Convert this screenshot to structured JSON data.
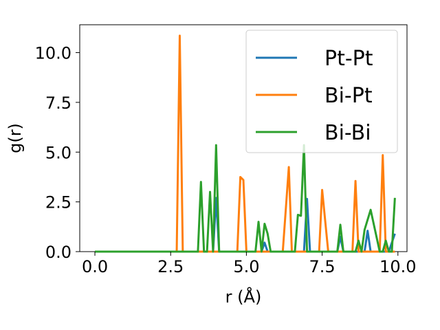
{
  "chart_data": {
    "type": "line",
    "xlabel": "r (Å)",
    "ylabel": "g(r)",
    "xlim": [
      -0.5,
      10.3
    ],
    "ylim": [
      0,
      11.4
    ],
    "xticks": [
      0.0,
      2.5,
      5.0,
      7.5,
      10.0
    ],
    "xtick_labels": [
      "0.0",
      "2.5",
      "5.0",
      "7.5",
      "10.0"
    ],
    "yticks": [
      0.0,
      2.5,
      5.0,
      7.5,
      10.0
    ],
    "ytick_labels": [
      "0.0",
      "2.5",
      "5.0",
      "7.5",
      "10.0"
    ],
    "grid": false,
    "legend_position": "upper right",
    "series": [
      {
        "name": "Pt-Pt",
        "color": "#1f77b4",
        "x": [
          0.0,
          3.9,
          4.0,
          4.1,
          5.5,
          5.6,
          5.7,
          6.9,
          7.0,
          7.1,
          8.0,
          8.1,
          8.2,
          8.9,
          9.0,
          9.1,
          9.7,
          9.8,
          9.9
        ],
        "y": [
          0.0,
          0.0,
          2.7,
          0.0,
          0.0,
          0.45,
          0.0,
          0.0,
          2.65,
          0.0,
          0.0,
          0.75,
          0.0,
          0.0,
          1.05,
          0.0,
          0.0,
          0.45,
          0.9
        ]
      },
      {
        "name": "Bi-Pt",
        "color": "#ff7f0e",
        "x": [
          0.0,
          2.7,
          2.8,
          2.9,
          4.7,
          4.8,
          4.9,
          5.0,
          6.2,
          6.4,
          6.5,
          7.4,
          7.5,
          7.7,
          8.5,
          8.6,
          8.7,
          9.4,
          9.5,
          9.6,
          9.9
        ],
        "y": [
          0.0,
          0.0,
          10.85,
          0.0,
          0.0,
          3.75,
          3.6,
          0.0,
          0.0,
          4.25,
          0.0,
          0.0,
          3.1,
          0.0,
          0.0,
          3.55,
          0.0,
          0.0,
          4.85,
          0.0,
          0.0
        ]
      },
      {
        "name": "Bi-Bi",
        "color": "#2ca02c",
        "x": [
          0.0,
          3.4,
          3.5,
          3.6,
          3.7,
          3.8,
          3.9,
          4.0,
          4.1,
          5.3,
          5.4,
          5.5,
          5.6,
          5.7,
          5.8,
          6.6,
          6.7,
          6.8,
          6.9,
          7.0,
          7.1,
          8.0,
          8.1,
          8.2,
          8.6,
          8.7,
          8.8,
          8.9,
          9.0,
          9.1,
          9.4,
          9.5,
          9.6,
          9.7,
          9.8,
          9.9
        ],
        "y": [
          0.0,
          0.0,
          3.5,
          0.0,
          0.0,
          3.0,
          0.0,
          5.35,
          0.0,
          0.0,
          1.5,
          0.0,
          1.4,
          0.9,
          0.0,
          0.0,
          1.85,
          1.8,
          5.35,
          0.0,
          0.0,
          0.0,
          1.35,
          0.0,
          0.0,
          0.55,
          0.0,
          1.1,
          1.6,
          2.1,
          0.0,
          0.0,
          0.55,
          0.0,
          0.0,
          2.7
        ]
      }
    ]
  }
}
